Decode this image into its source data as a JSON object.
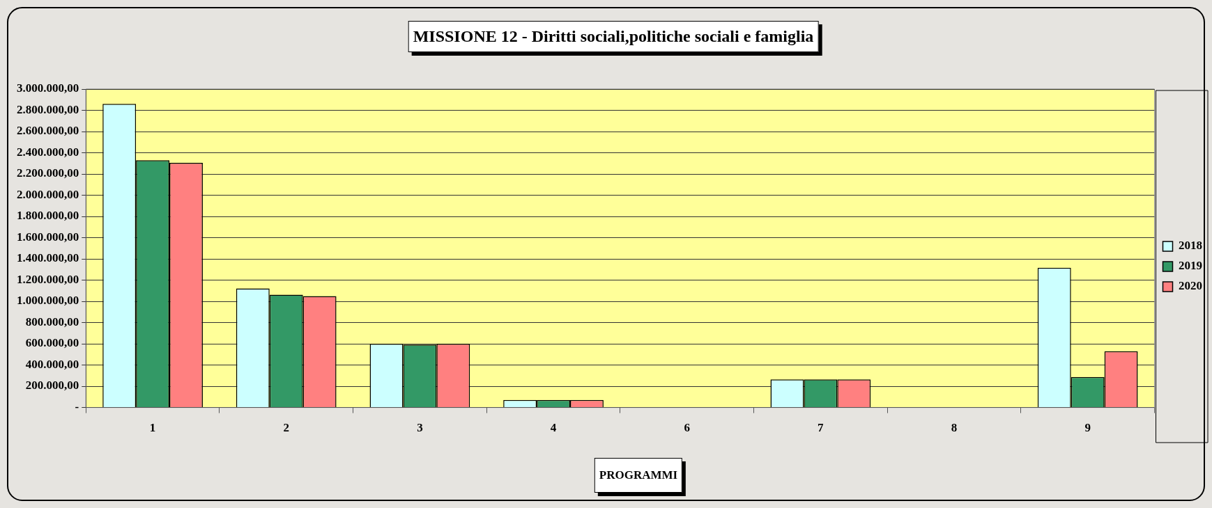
{
  "chart_data": {
    "type": "bar",
    "title": "MISSIONE 12 - Diritti sociali,politiche sociali e famiglia",
    "xlabel": "PROGRAMMI",
    "categories": [
      "1",
      "2",
      "3",
      "4",
      "6",
      "7",
      "8",
      "9"
    ],
    "series": [
      {
        "name": "2018",
        "color": "#ccffff",
        "values": [
          2860000,
          1122000,
          600000,
          71000,
          0,
          264000,
          0,
          1317000
        ]
      },
      {
        "name": "2019",
        "color": "#339966",
        "values": [
          2330000,
          1063000,
          592000,
          71000,
          0,
          264000,
          0,
          288000
        ]
      },
      {
        "name": "2020",
        "color": "#ff8080",
        "values": [
          2305000,
          1049000,
          600000,
          71000,
          0,
          264000,
          0,
          530000
        ]
      }
    ],
    "ylim": [
      0,
      3000000
    ],
    "yticks": [
      {
        "value": 0,
        "label": "-"
      },
      {
        "value": 200000,
        "label": "200.000,00"
      },
      {
        "value": 400000,
        "label": "400.000,00"
      },
      {
        "value": 600000,
        "label": "600.000,00"
      },
      {
        "value": 800000,
        "label": "800.000,00"
      },
      {
        "value": 1000000,
        "label": "1.000.000,00"
      },
      {
        "value": 1200000,
        "label": "1.200.000,00"
      },
      {
        "value": 1400000,
        "label": "1.400.000,00"
      },
      {
        "value": 1600000,
        "label": "1.600.000,00"
      },
      {
        "value": 1800000,
        "label": "1.800.000,00"
      },
      {
        "value": 2000000,
        "label": "2.000.000,00"
      },
      {
        "value": 2200000,
        "label": "2.200.000,00"
      },
      {
        "value": 2400000,
        "label": "2.400.000,00"
      },
      {
        "value": 2600000,
        "label": "2.600.000,00"
      },
      {
        "value": 2800000,
        "label": "2.800.000,00"
      },
      {
        "value": 3000000,
        "label": "3.000.000,00"
      }
    ],
    "grid": "y",
    "legend": "right"
  }
}
